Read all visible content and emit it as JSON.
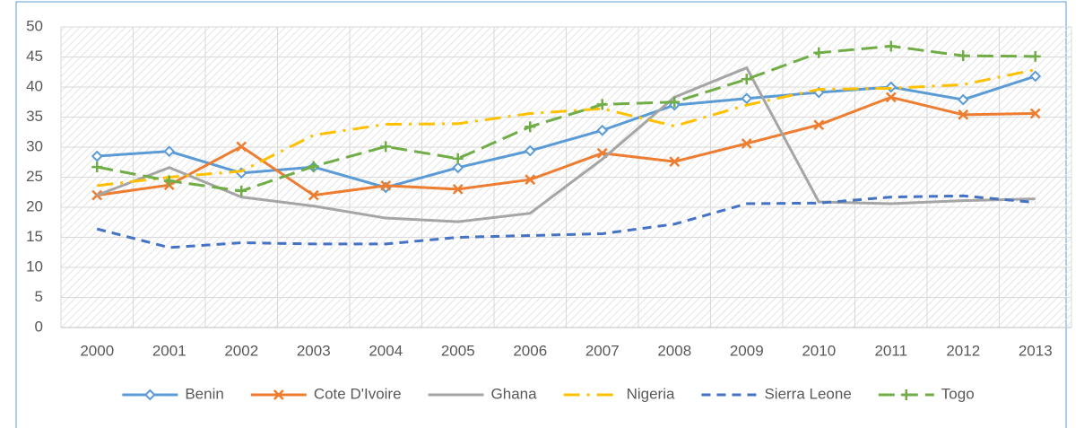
{
  "chart_data": {
    "type": "line",
    "categories": [
      "2000",
      "2001",
      "2002",
      "2003",
      "2004",
      "2005",
      "2006",
      "2007",
      "2008",
      "2009",
      "2010",
      "2011",
      "2012",
      "2013"
    ],
    "series": [
      {
        "name": "Benin",
        "color": "#5b9bd5",
        "dash": "solid",
        "marker": "diamond",
        "values": [
          28.5,
          29.3,
          25.7,
          26.7,
          23.3,
          26.6,
          29.4,
          32.8,
          37,
          38.1,
          39.1,
          40,
          37.9,
          41.8
        ]
      },
      {
        "name": "Cote D'Ivoire",
        "color": "#ed7d31",
        "dash": "solid",
        "marker": "x",
        "values": [
          22,
          23.7,
          30.1,
          22,
          23.6,
          23,
          24.6,
          29,
          27.6,
          30.6,
          33.7,
          38.3,
          35.4,
          35.6
        ]
      },
      {
        "name": "Ghana",
        "color": "#a5a5a5",
        "dash": "solid",
        "marker": "none",
        "values": [
          22,
          26.6,
          21.7,
          20.2,
          18.2,
          17.6,
          19,
          28,
          38.3,
          43.2,
          20.9,
          20.6,
          21.1,
          21.4
        ]
      },
      {
        "name": "Nigeria",
        "color": "#ffc000",
        "dash": "dashdot",
        "marker": "none",
        "values": [
          23.6,
          25,
          26,
          32,
          33.8,
          33.9,
          35.6,
          36.4,
          33.5,
          37,
          39.6,
          39.8,
          40.4,
          42.9
        ]
      },
      {
        "name": "Sierra Leone",
        "color": "#4472c4",
        "dash": "dash",
        "marker": "none",
        "values": [
          16.4,
          13.3,
          14.1,
          13.9,
          13.9,
          15,
          15.3,
          15.6,
          17.2,
          20.6,
          20.7,
          21.7,
          21.9,
          20.8
        ]
      },
      {
        "name": "Togo",
        "color": "#70ad47",
        "dash": "longdash",
        "marker": "plus",
        "values": [
          26.7,
          24.4,
          22.7,
          26.8,
          30.1,
          28.1,
          33.4,
          37.1,
          37.5,
          41.3,
          45.7,
          46.8,
          45.2,
          45.1
        ]
      }
    ],
    "ylim": [
      0,
      50
    ],
    "yticks": [
      0,
      5,
      10,
      15,
      20,
      25,
      30,
      35,
      40,
      45,
      50
    ],
    "grid": true,
    "legend": "bottom"
  }
}
